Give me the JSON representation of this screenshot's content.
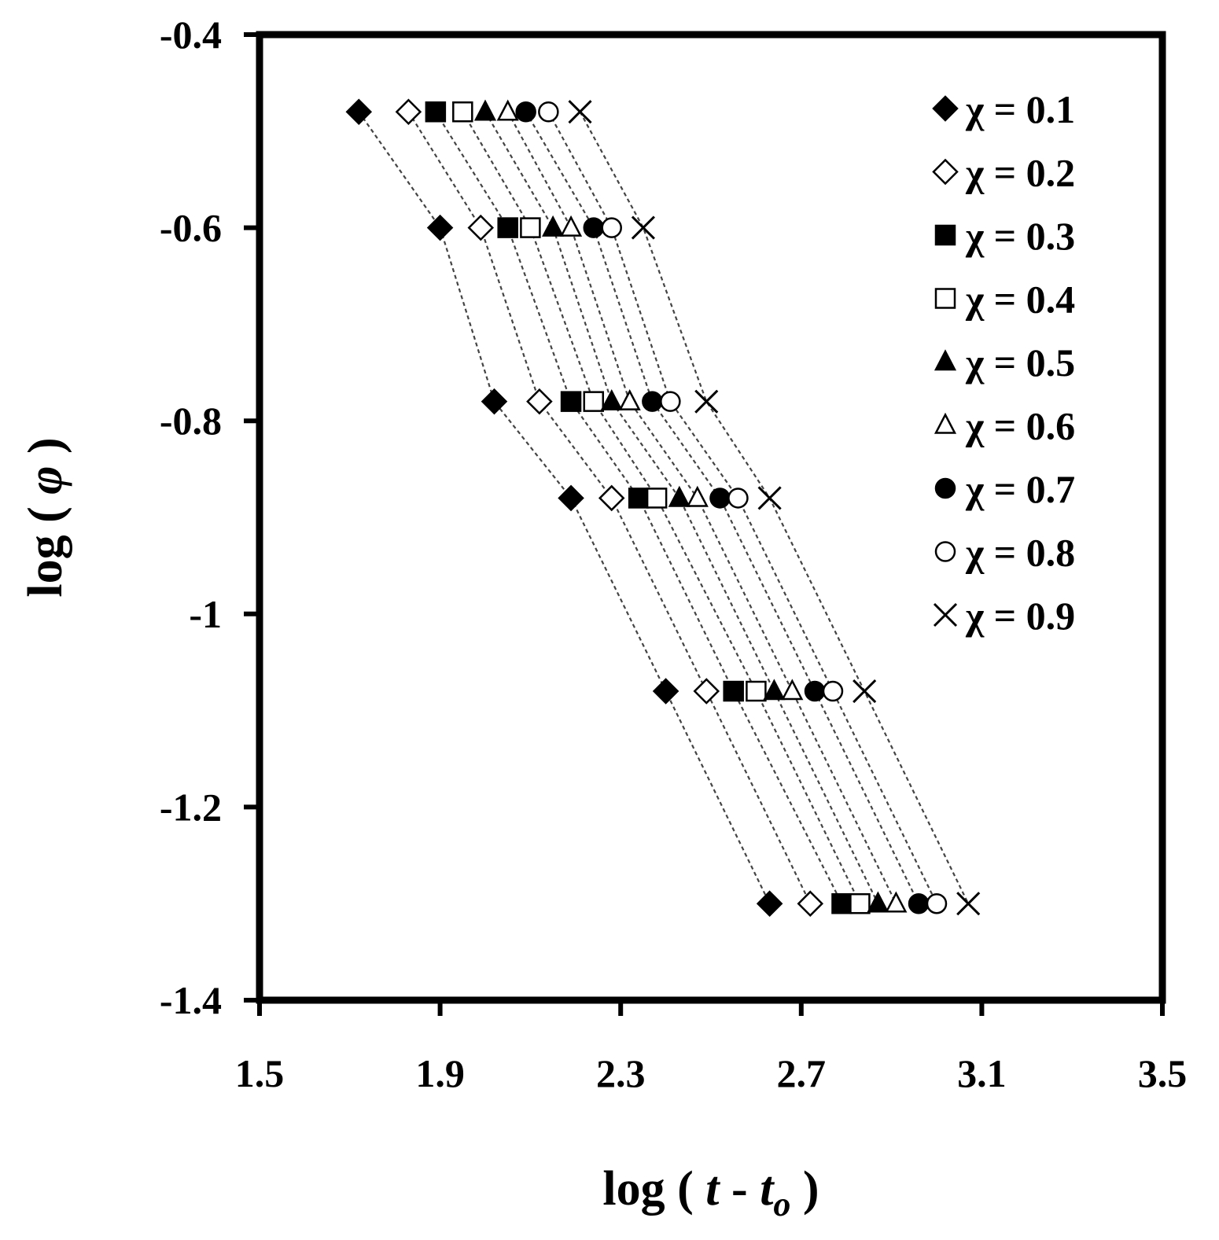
{
  "chart_data": {
    "type": "scatter",
    "xlabel_parts": [
      "log ( ",
      "t",
      " - ",
      "t",
      "o",
      " )"
    ],
    "ylabel_parts": [
      "log ( ",
      "φ",
      " )"
    ],
    "xlim": [
      1.5,
      3.5
    ],
    "ylim": [
      -1.4,
      -0.4
    ],
    "xticks": [
      "1.5",
      "1.9",
      "2.3",
      "2.7",
      "3.1",
      "3.5"
    ],
    "yticks": [
      "-0.4",
      "-0.6",
      "-0.8",
      "-1",
      "-1.2",
      "-1.4"
    ],
    "xtick_values": [
      1.5,
      1.9,
      2.3,
      2.7,
      3.1,
      3.5
    ],
    "ytick_values": [
      -0.4,
      -0.6,
      -0.8,
      -1.0,
      -1.2,
      -1.4
    ],
    "grid": false,
    "legend_position": "top-right",
    "line_style": "dotted trend lines",
    "series": [
      {
        "name": "χ = 0.1",
        "marker": "filled-diamond",
        "x": [
          1.72,
          1.9,
          2.02,
          2.19,
          2.4,
          2.63
        ],
        "y": [
          -0.48,
          -0.6,
          -0.78,
          -0.88,
          -1.08,
          -1.3
        ]
      },
      {
        "name": "χ = 0.2",
        "marker": "open-diamond",
        "x": [
          1.83,
          1.99,
          2.12,
          2.28,
          2.49,
          2.72
        ],
        "y": [
          -0.48,
          -0.6,
          -0.78,
          -0.88,
          -1.08,
          -1.3
        ]
      },
      {
        "name": "χ = 0.3",
        "marker": "filled-square",
        "x": [
          1.89,
          2.05,
          2.19,
          2.34,
          2.55,
          2.79
        ],
        "y": [
          -0.48,
          -0.6,
          -0.78,
          -0.88,
          -1.08,
          -1.3
        ]
      },
      {
        "name": "χ = 0.4",
        "marker": "open-square",
        "x": [
          1.95,
          2.1,
          2.24,
          2.38,
          2.6,
          2.83
        ],
        "y": [
          -0.48,
          -0.6,
          -0.78,
          -0.88,
          -1.08,
          -1.3
        ]
      },
      {
        "name": "χ = 0.5",
        "marker": "filled-triangle",
        "x": [
          2.0,
          2.15,
          2.28,
          2.43,
          2.64,
          2.87
        ],
        "y": [
          -0.48,
          -0.6,
          -0.78,
          -0.88,
          -1.08,
          -1.3
        ]
      },
      {
        "name": "χ = 0.6",
        "marker": "open-triangle",
        "x": [
          2.05,
          2.19,
          2.32,
          2.47,
          2.68,
          2.91
        ],
        "y": [
          -0.48,
          -0.6,
          -0.78,
          -0.88,
          -1.08,
          -1.3
        ]
      },
      {
        "name": "χ = 0.7",
        "marker": "filled-circle",
        "x": [
          2.09,
          2.24,
          2.37,
          2.52,
          2.73,
          2.96
        ],
        "y": [
          -0.48,
          -0.6,
          -0.78,
          -0.88,
          -1.08,
          -1.3
        ]
      },
      {
        "name": "χ = 0.8",
        "marker": "open-circle",
        "x": [
          2.14,
          2.28,
          2.41,
          2.56,
          2.77,
          3.0
        ],
        "y": [
          -0.48,
          -0.6,
          -0.78,
          -0.88,
          -1.08,
          -1.3
        ]
      },
      {
        "name": "χ = 0.9",
        "marker": "cross",
        "x": [
          2.21,
          2.35,
          2.49,
          2.63,
          2.84,
          3.07
        ],
        "y": [
          -0.48,
          -0.6,
          -0.78,
          -0.88,
          -1.08,
          -1.3
        ]
      }
    ]
  }
}
